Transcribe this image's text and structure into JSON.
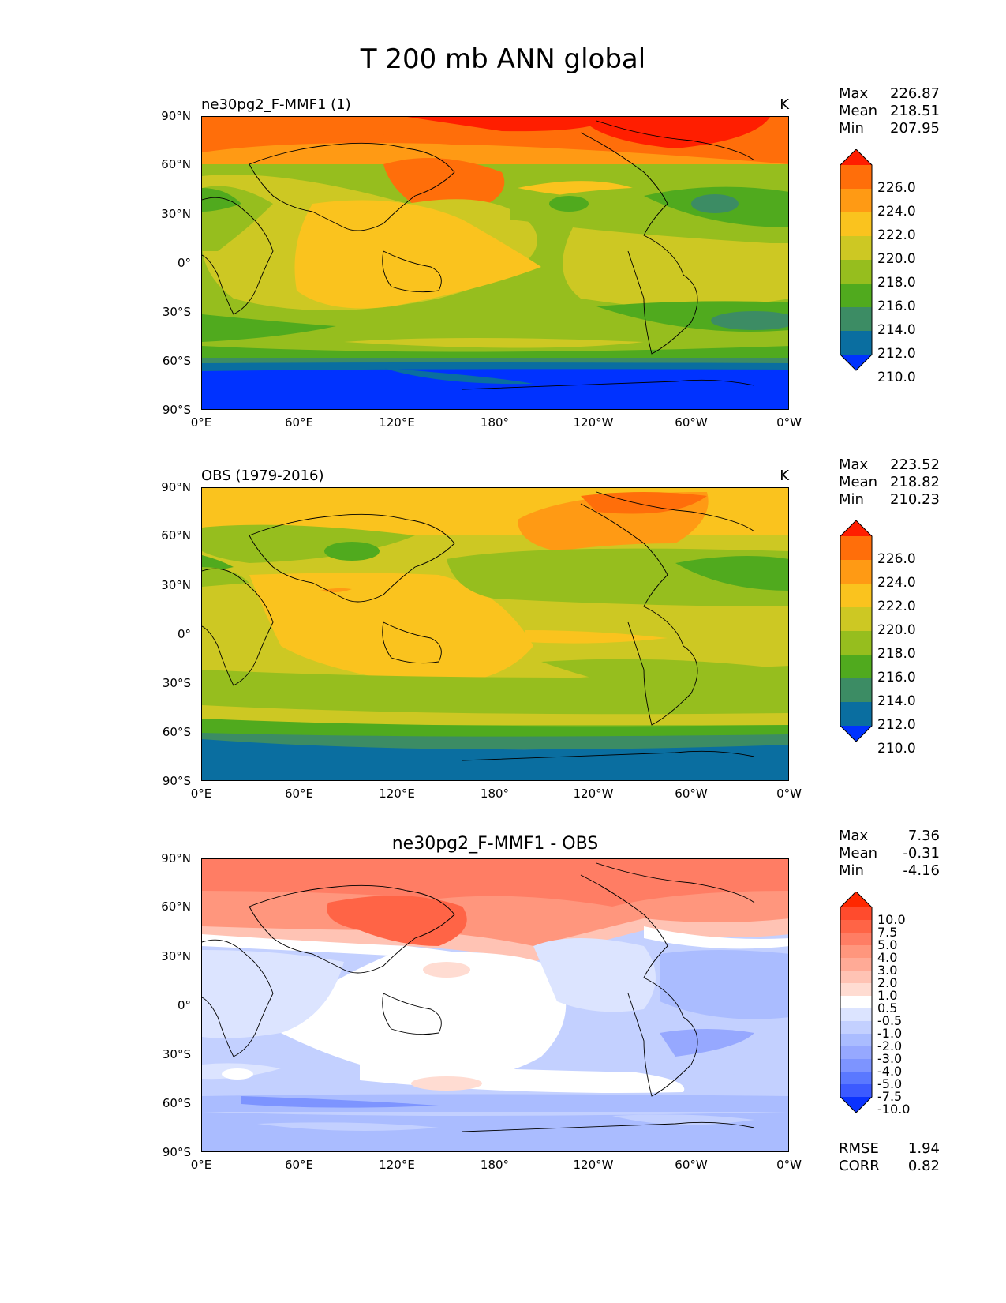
{
  "title": "T 200 mb ANN global",
  "lat_labels": [
    "90°N",
    "60°N",
    "30°N",
    "0°",
    "30°S",
    "60°S",
    "90°S"
  ],
  "lon_labels": [
    "0°E",
    "60°E",
    "120°E",
    "180°",
    "120°W",
    "60°W",
    "0°W"
  ],
  "units": "K",
  "stat_names": {
    "max": "Max",
    "mean": "Mean",
    "min": "Min",
    "rmse": "RMSE",
    "corr": "CORR"
  },
  "panels": [
    {
      "id": "test",
      "title": "ne30pg2_F-MMF1 (1)",
      "stats": {
        "max": "226.87",
        "mean": "218.51",
        "min": "207.95"
      },
      "colorbar_labels": [
        "226.0",
        "224.0",
        "222.0",
        "220.0",
        "218.0",
        "216.0",
        "214.0",
        "212.0",
        "210.0"
      ],
      "colorbar_colors": [
        "#ff1e00",
        "#ff6e0a",
        "#ff9a14",
        "#fac31e",
        "#cdc823",
        "#96be1e",
        "#50aa1e",
        "#3c8c64",
        "#0a6ea0",
        "#0032ff"
      ]
    },
    {
      "id": "ref",
      "title": "OBS (1979-2016)",
      "stats": {
        "max": "223.52",
        "mean": "218.82",
        "min": "210.23"
      },
      "colorbar_labels": [
        "226.0",
        "224.0",
        "222.0",
        "220.0",
        "218.0",
        "216.0",
        "214.0",
        "212.0",
        "210.0"
      ],
      "colorbar_colors": [
        "#ff1e00",
        "#ff6e0a",
        "#ff9a14",
        "#fac31e",
        "#cdc823",
        "#96be1e",
        "#50aa1e",
        "#3c8c64",
        "#0a6ea0",
        "#0032ff"
      ]
    },
    {
      "id": "diff",
      "title": "ne30pg2_F-MMF1 - OBS",
      "stats": {
        "max": "7.36",
        "mean": "-0.31",
        "min": "-4.16"
      },
      "metrics": {
        "rmse": "1.94",
        "corr": "0.82"
      },
      "colorbar_labels": [
        "10.0",
        "7.5",
        "5.0",
        "4.0",
        "3.0",
        "2.0",
        "1.0",
        "0.5",
        "-0.5",
        "-1.0",
        "-2.0",
        "-3.0",
        "-4.0",
        "-5.0",
        "-7.5",
        "-10.0"
      ],
      "colorbar_colors": [
        "#ff2800",
        "#ff4b2d",
        "#ff6446",
        "#ff7d64",
        "#ff967d",
        "#ffaa96",
        "#ffc3b4",
        "#ffdcd2",
        "#ffffff",
        "#dce4ff",
        "#c3d0ff",
        "#aabcff",
        "#96a8ff",
        "#7d94ff",
        "#5a78ff",
        "#3c5aff",
        "#0a32ff"
      ]
    }
  ]
}
